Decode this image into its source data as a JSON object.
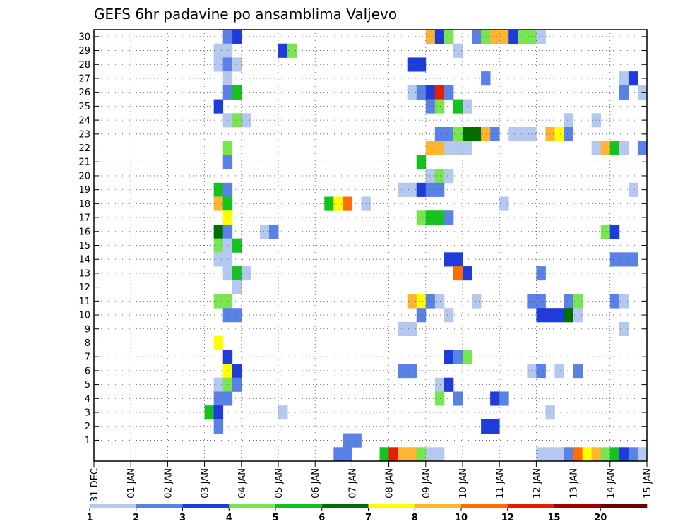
{
  "chart_data": {
    "type": "heatmap",
    "title": "GEFS 6hr padavine po ansamblima Valjevo",
    "xlabel": "",
    "ylabel": "",
    "x_ticks": [
      "31 DEC",
      "01 JAN",
      "02 JAN",
      "03 JAN",
      "04 JAN",
      "05 JAN",
      "06 JAN",
      "07 JAN",
      "08 JAN",
      "09 JAN",
      "10 JAN",
      "11 JAN",
      "12 JAN",
      "13 JAN",
      "14 JAN",
      "15 JAN"
    ],
    "xlim": [
      0,
      60
    ],
    "y_ticks": [
      "1",
      "2",
      "3",
      "4",
      "5",
      "6",
      "7",
      "8",
      "9",
      "10",
      "11",
      "12",
      "13",
      "14",
      "15",
      "16",
      "17",
      "18",
      "19",
      "20",
      "21",
      "22",
      "23",
      "24",
      "25",
      "26",
      "27",
      "28",
      "29",
      "30"
    ],
    "ylim": [
      0,
      30
    ],
    "grid": true,
    "colorbar": {
      "labels": [
        "1",
        "2",
        "3",
        "4",
        "5",
        "6",
        "7",
        "8",
        "10",
        "12",
        "15",
        "20"
      ],
      "colors": [
        "#b4c8f0",
        "#5a82e6",
        "#1e3cdc",
        "#78e650",
        "#14c31e",
        "#006e00",
        "#ffff00",
        "#ffb432",
        "#ff6e00",
        "#e61e00",
        "#a00000",
        "#6e0000"
      ]
    },
    "cells": [
      {
        "member": 30,
        "step": 15,
        "level": 3
      },
      {
        "member": 30,
        "step": 14,
        "level": 2
      },
      {
        "member": 30,
        "step": 36,
        "level": 8
      },
      {
        "member": 30,
        "step": 37,
        "level": 3
      },
      {
        "member": 30,
        "step": 38,
        "level": 4
      },
      {
        "member": 30,
        "step": 41,
        "level": 2
      },
      {
        "member": 30,
        "step": 42,
        "level": 4
      },
      {
        "member": 30,
        "step": 43,
        "level": 8
      },
      {
        "member": 30,
        "step": 44,
        "level": 8
      },
      {
        "member": 30,
        "step": 45,
        "level": 3
      },
      {
        "member": 30,
        "step": 46,
        "level": 4
      },
      {
        "member": 30,
        "step": 47,
        "level": 4
      },
      {
        "member": 30,
        "step": 48,
        "level": 1
      },
      {
        "member": 29,
        "step": 13,
        "level": 1
      },
      {
        "member": 29,
        "step": 14,
        "level": 1
      },
      {
        "member": 29,
        "step": 20,
        "level": 3
      },
      {
        "member": 29,
        "step": 21,
        "level": 4
      },
      {
        "member": 29,
        "step": 39,
        "level": 1
      },
      {
        "member": 28,
        "step": 13,
        "level": 1
      },
      {
        "member": 28,
        "step": 14,
        "level": 2
      },
      {
        "member": 28,
        "step": 15,
        "level": 1
      },
      {
        "member": 28,
        "step": 34,
        "level": 3
      },
      {
        "member": 28,
        "step": 35,
        "level": 3
      },
      {
        "member": 27,
        "step": 14,
        "level": 1
      },
      {
        "member": 27,
        "step": 42,
        "level": 2
      },
      {
        "member": 27,
        "step": 57,
        "level": 1
      },
      {
        "member": 27,
        "step": 58,
        "level": 3
      },
      {
        "member": 26,
        "step": 14,
        "level": 2
      },
      {
        "member": 26,
        "step": 15,
        "level": 5
      },
      {
        "member": 26,
        "step": 34,
        "level": 1
      },
      {
        "member": 26,
        "step": 35,
        "level": 2
      },
      {
        "member": 26,
        "step": 36,
        "level": 3
      },
      {
        "member": 26,
        "step": 37,
        "level": 10
      },
      {
        "member": 26,
        "step": 38,
        "level": 2
      },
      {
        "member": 26,
        "step": 57,
        "level": 2
      },
      {
        "member": 26,
        "step": 59,
        "level": 1
      },
      {
        "member": 25,
        "step": 13,
        "level": 3
      },
      {
        "member": 25,
        "step": 36,
        "level": 2
      },
      {
        "member": 25,
        "step": 37,
        "level": 4
      },
      {
        "member": 25,
        "step": 39,
        "level": 5
      },
      {
        "member": 25,
        "step": 40,
        "level": 1
      },
      {
        "member": 24,
        "step": 14,
        "level": 1
      },
      {
        "member": 24,
        "step": 15,
        "level": 4
      },
      {
        "member": 24,
        "step": 16,
        "level": 1
      },
      {
        "member": 24,
        "step": 51,
        "level": 1
      },
      {
        "member": 24,
        "step": 54,
        "level": 1
      },
      {
        "member": 23,
        "step": 37,
        "level": 2
      },
      {
        "member": 23,
        "step": 38,
        "level": 2
      },
      {
        "member": 23,
        "step": 39,
        "level": 4
      },
      {
        "member": 23,
        "step": 40,
        "level": 6
      },
      {
        "member": 23,
        "step": 41,
        "level": 6
      },
      {
        "member": 23,
        "step": 42,
        "level": 8
      },
      {
        "member": 23,
        "step": 43,
        "level": 2
      },
      {
        "member": 23,
        "step": 45,
        "level": 1
      },
      {
        "member": 23,
        "step": 46,
        "level": 1
      },
      {
        "member": 23,
        "step": 47,
        "level": 1
      },
      {
        "member": 23,
        "step": 49,
        "level": 8
      },
      {
        "member": 23,
        "step": 50,
        "level": 7
      },
      {
        "member": 23,
        "step": 51,
        "level": 2
      },
      {
        "member": 22,
        "step": 14,
        "level": 4
      },
      {
        "member": 22,
        "step": 36,
        "level": 8
      },
      {
        "member": 22,
        "step": 37,
        "level": 8
      },
      {
        "member": 22,
        "step": 38,
        "level": 1
      },
      {
        "member": 22,
        "step": 39,
        "level": 1
      },
      {
        "member": 22,
        "step": 40,
        "level": 1
      },
      {
        "member": 22,
        "step": 54,
        "level": 1
      },
      {
        "member": 22,
        "step": 55,
        "level": 8
      },
      {
        "member": 22,
        "step": 56,
        "level": 5
      },
      {
        "member": 22,
        "step": 57,
        "level": 1
      },
      {
        "member": 22,
        "step": 59,
        "level": 2
      },
      {
        "member": 21,
        "step": 14,
        "level": 2
      },
      {
        "member": 21,
        "step": 35,
        "level": 5
      },
      {
        "member": 20,
        "step": 36,
        "level": 1
      },
      {
        "member": 20,
        "step": 37,
        "level": 4
      },
      {
        "member": 20,
        "step": 38,
        "level": 1
      },
      {
        "member": 19,
        "step": 13,
        "level": 5
      },
      {
        "member": 19,
        "step": 14,
        "level": 2
      },
      {
        "member": 19,
        "step": 33,
        "level": 1
      },
      {
        "member": 19,
        "step": 34,
        "level": 1
      },
      {
        "member": 19,
        "step": 35,
        "level": 3
      },
      {
        "member": 19,
        "step": 36,
        "level": 2
      },
      {
        "member": 19,
        "step": 37,
        "level": 2
      },
      {
        "member": 19,
        "step": 58,
        "level": 1
      },
      {
        "member": 18,
        "step": 13,
        "level": 8
      },
      {
        "member": 18,
        "step": 14,
        "level": 5
      },
      {
        "member": 18,
        "step": 25,
        "level": 5
      },
      {
        "member": 18,
        "step": 26,
        "level": 7
      },
      {
        "member": 18,
        "step": 27,
        "level": 9
      },
      {
        "member": 18,
        "step": 29,
        "level": 1
      },
      {
        "member": 18,
        "step": 44,
        "level": 1
      },
      {
        "member": 17,
        "step": 14,
        "level": 7
      },
      {
        "member": 17,
        "step": 35,
        "level": 4
      },
      {
        "member": 17,
        "step": 36,
        "level": 5
      },
      {
        "member": 17,
        "step": 37,
        "level": 5
      },
      {
        "member": 17,
        "step": 38,
        "level": 2
      },
      {
        "member": 16,
        "step": 13,
        "level": 6
      },
      {
        "member": 16,
        "step": 14,
        "level": 2
      },
      {
        "member": 16,
        "step": 18,
        "level": 1
      },
      {
        "member": 16,
        "step": 19,
        "level": 2
      },
      {
        "member": 16,
        "step": 55,
        "level": 4
      },
      {
        "member": 16,
        "step": 56,
        "level": 3
      },
      {
        "member": 15,
        "step": 13,
        "level": 4
      },
      {
        "member": 15,
        "step": 14,
        "level": 1
      },
      {
        "member": 15,
        "step": 15,
        "level": 5
      },
      {
        "member": 14,
        "step": 13,
        "level": 1
      },
      {
        "member": 14,
        "step": 14,
        "level": 1
      },
      {
        "member": 14,
        "step": 38,
        "level": 3
      },
      {
        "member": 14,
        "step": 39,
        "level": 3
      },
      {
        "member": 14,
        "step": 56,
        "level": 2
      },
      {
        "member": 14,
        "step": 57,
        "level": 2
      },
      {
        "member": 14,
        "step": 58,
        "level": 2
      },
      {
        "member": 13,
        "step": 14,
        "level": 1
      },
      {
        "member": 13,
        "step": 15,
        "level": 5
      },
      {
        "member": 13,
        "step": 16,
        "level": 1
      },
      {
        "member": 13,
        "step": 39,
        "level": 9
      },
      {
        "member": 13,
        "step": 40,
        "level": 3
      },
      {
        "member": 13,
        "step": 48,
        "level": 2
      },
      {
        "member": 12,
        "step": 15,
        "level": 1
      },
      {
        "member": 11,
        "step": 13,
        "level": 4
      },
      {
        "member": 11,
        "step": 14,
        "level": 4
      },
      {
        "member": 11,
        "step": 34,
        "level": 8
      },
      {
        "member": 11,
        "step": 35,
        "level": 7
      },
      {
        "member": 11,
        "step": 36,
        "level": 2
      },
      {
        "member": 11,
        "step": 37,
        "level": 1
      },
      {
        "member": 11,
        "step": 41,
        "level": 1
      },
      {
        "member": 11,
        "step": 47,
        "level": 2
      },
      {
        "member": 11,
        "step": 48,
        "level": 2
      },
      {
        "member": 11,
        "step": 51,
        "level": 2
      },
      {
        "member": 11,
        "step": 52,
        "level": 4
      },
      {
        "member": 11,
        "step": 56,
        "level": 2
      },
      {
        "member": 11,
        "step": 57,
        "level": 1
      },
      {
        "member": 10,
        "step": 14,
        "level": 2
      },
      {
        "member": 10,
        "step": 15,
        "level": 2
      },
      {
        "member": 10,
        "step": 35,
        "level": 2
      },
      {
        "member": 10,
        "step": 38,
        "level": 1
      },
      {
        "member": 10,
        "step": 48,
        "level": 3
      },
      {
        "member": 10,
        "step": 49,
        "level": 3
      },
      {
        "member": 10,
        "step": 50,
        "level": 3
      },
      {
        "member": 10,
        "step": 51,
        "level": 6
      },
      {
        "member": 10,
        "step": 52,
        "level": 1
      },
      {
        "member": 9,
        "step": 33,
        "level": 1
      },
      {
        "member": 9,
        "step": 34,
        "level": 1
      },
      {
        "member": 9,
        "step": 57,
        "level": 1
      },
      {
        "member": 8,
        "step": 13,
        "level": 7
      },
      {
        "member": 7,
        "step": 14,
        "level": 3
      },
      {
        "member": 7,
        "step": 38,
        "level": 3
      },
      {
        "member": 7,
        "step": 39,
        "level": 2
      },
      {
        "member": 7,
        "step": 40,
        "level": 4
      },
      {
        "member": 6,
        "step": 14,
        "level": 7
      },
      {
        "member": 6,
        "step": 15,
        "level": 3
      },
      {
        "member": 6,
        "step": 33,
        "level": 2
      },
      {
        "member": 6,
        "step": 34,
        "level": 2
      },
      {
        "member": 6,
        "step": 47,
        "level": 1
      },
      {
        "member": 6,
        "step": 48,
        "level": 2
      },
      {
        "member": 6,
        "step": 50,
        "level": 1
      },
      {
        "member": 6,
        "step": 52,
        "level": 2
      },
      {
        "member": 5,
        "step": 13,
        "level": 1
      },
      {
        "member": 5,
        "step": 14,
        "level": 4
      },
      {
        "member": 5,
        "step": 15,
        "level": 2
      },
      {
        "member": 5,
        "step": 37,
        "level": 1
      },
      {
        "member": 5,
        "step": 38,
        "level": 3
      },
      {
        "member": 4,
        "step": 13,
        "level": 2
      },
      {
        "member": 4,
        "step": 14,
        "level": 2
      },
      {
        "member": 4,
        "step": 37,
        "level": 4
      },
      {
        "member": 4,
        "step": 39,
        "level": 2
      },
      {
        "member": 4,
        "step": 43,
        "level": 3
      },
      {
        "member": 4,
        "step": 44,
        "level": 2
      },
      {
        "member": 3,
        "step": 12,
        "level": 5
      },
      {
        "member": 3,
        "step": 13,
        "level": 3
      },
      {
        "member": 3,
        "step": 20,
        "level": 1
      },
      {
        "member": 3,
        "step": 49,
        "level": 1
      },
      {
        "member": 2,
        "step": 13,
        "level": 2
      },
      {
        "member": 2,
        "step": 42,
        "level": 3
      },
      {
        "member": 2,
        "step": 43,
        "level": 3
      },
      {
        "member": 1,
        "step": 27,
        "level": 2
      },
      {
        "member": 1,
        "step": 28,
        "level": 2
      },
      {
        "member": 0,
        "step": 26,
        "level": 2
      },
      {
        "member": 0,
        "step": 27,
        "level": 2
      },
      {
        "member": 0,
        "step": 31,
        "level": 5
      },
      {
        "member": 0,
        "step": 32,
        "level": 10
      },
      {
        "member": 0,
        "step": 33,
        "level": 8
      },
      {
        "member": 0,
        "step": 34,
        "level": 8
      },
      {
        "member": 0,
        "step": 35,
        "level": 4
      },
      {
        "member": 0,
        "step": 36,
        "level": 1
      },
      {
        "member": 0,
        "step": 37,
        "level": 1
      },
      {
        "member": 0,
        "step": 48,
        "level": 1
      },
      {
        "member": 0,
        "step": 49,
        "level": 1
      },
      {
        "member": 0,
        "step": 50,
        "level": 1
      },
      {
        "member": 0,
        "step": 51,
        "level": 2
      },
      {
        "member": 0,
        "step": 52,
        "level": 9
      },
      {
        "member": 0,
        "step": 53,
        "level": 7
      },
      {
        "member": 0,
        "step": 54,
        "level": 8
      },
      {
        "member": 0,
        "step": 55,
        "level": 4
      },
      {
        "member": 0,
        "step": 56,
        "level": 5
      },
      {
        "member": 0,
        "step": 57,
        "level": 3
      },
      {
        "member": 0,
        "step": 58,
        "level": 2
      },
      {
        "member": 0,
        "step": 59,
        "level": 1
      }
    ]
  }
}
